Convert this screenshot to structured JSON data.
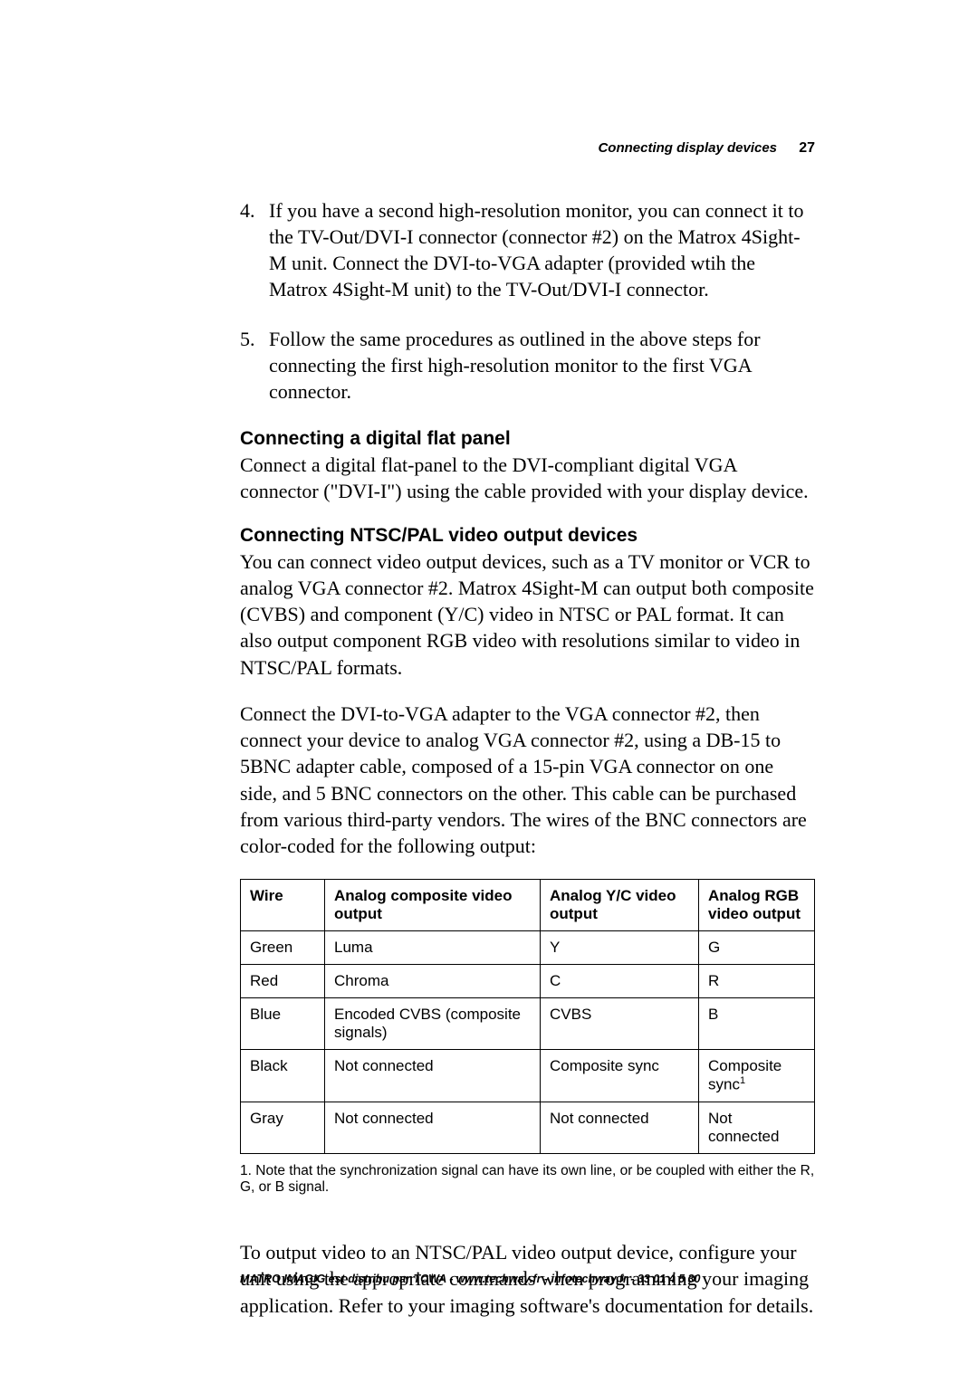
{
  "header": {
    "section_title": "Connecting display devices",
    "page_number": "27"
  },
  "steps": [
    {
      "number": "4.",
      "text": "If you have a second high-resolution monitor, you can connect it to the TV-Out/DVI-I connector (connector #2) on the Matrox 4Sight-M unit. Connect the DVI-to-VGA adapter (provided wtih the Matrox 4Sight-M unit) to the TV-Out/DVI-I connector."
    },
    {
      "number": "5.",
      "text": "Follow the same procedures as outlined in the above steps for connecting the first high-resolution monitor to the first VGA connector."
    }
  ],
  "sections": [
    {
      "heading": "Connecting a digital flat panel",
      "paragraphs": [
        "Connect a digital flat-panel to the DVI-compliant digital VGA connector (\"DVI-I\") using the cable provided with your display device."
      ]
    },
    {
      "heading": "Connecting NTSC/PAL video output devices",
      "paragraphs": [
        "You can connect video output devices, such as a TV monitor or VCR to analog VGA connector #2. Matrox 4Sight-M can output both composite (CVBS) and component (Y/C) video in NTSC or PAL format. It can also output component RGB video with resolutions similar to video in NTSC/PAL formats.",
        "Connect the DVI-to-VGA adapter to the VGA connector #2, then connect your device to analog VGA connector #2, using a DB-15 to 5BNC adapter cable, composed of a 15-pin VGA connector on one side, and 5 BNC connectors on the other. This cable can be purchased from various third-party vendors. The wires of the BNC connectors are color-coded for the following output:"
      ]
    }
  ],
  "table": {
    "columns": [
      "Wire",
      "Analog composite video output",
      "Analog Y/C video output",
      "Analog RGB video output"
    ],
    "rows": [
      [
        "Green",
        "Luma",
        "Y",
        "G"
      ],
      [
        "Red",
        "Chroma",
        "C",
        "R"
      ],
      [
        "Blue",
        "Encoded CVBS (composite signals)",
        "CVBS",
        "B"
      ],
      [
        "Black",
        "Not connected",
        "Composite sync",
        "Composite sync"
      ],
      [
        "Gray",
        "Not connected",
        "Not connected",
        "Not connected"
      ]
    ],
    "superscript_cell": {
      "row": 3,
      "col": 3,
      "sup": "1"
    },
    "col_widths": [
      "72px",
      "238px",
      "175px",
      "auto"
    ]
  },
  "footnote": {
    "marker": "1.",
    "text": "Note that the synchronization signal can have its own line, or be coupled with either the R, G, or B signal."
  },
  "closing_paragraph": "To output video to an NTSC/PAL video output device, configure your unit using the appropriate commands when programming your imaging application. Refer to your imaging software's documentation for details.",
  "footer": "MATRO IMAGIG est distribu par TCWA - www.techway.fr - infotechway.fr - 33 01 4  5 30"
}
